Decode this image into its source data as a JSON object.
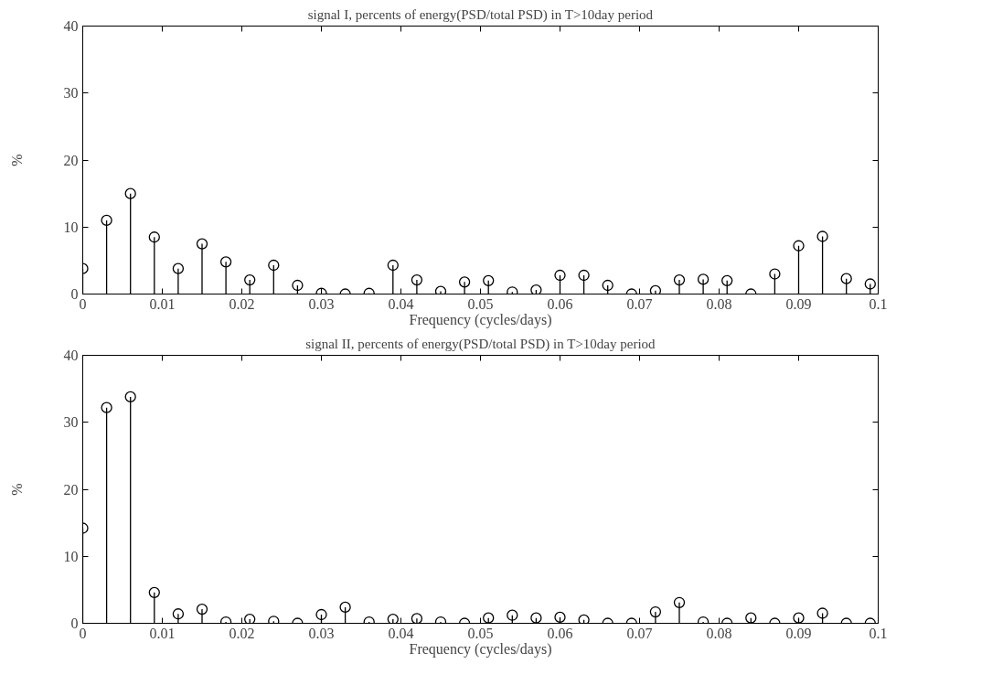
{
  "chart_data": [
    {
      "type": "lollipop",
      "title": "signal I, percents of energy(PSD/total PSD) in T>10day period",
      "xlabel": "Frequency (cycles/days)",
      "ylabel": "%",
      "marker": "circle",
      "grid": false,
      "x": [
        0,
        0.003,
        0.006,
        0.009,
        0.012,
        0.015,
        0.018,
        0.021,
        0.024,
        0.027,
        0.03,
        0.033,
        0.036,
        0.039,
        0.042,
        0.045,
        0.048,
        0.051,
        0.054,
        0.057,
        0.06,
        0.063,
        0.066,
        0.069,
        0.072,
        0.075,
        0.078,
        0.081,
        0.084,
        0.087,
        0.09,
        0.093,
        0.096,
        0.099
      ],
      "series": [
        {
          "color": "#000000",
          "values": [
            3.8,
            11,
            15,
            8.5,
            3.8,
            7.5,
            4.8,
            2.1,
            4.3,
            1.3,
            0.1,
            0,
            0.1,
            4.3,
            2.1,
            0.4,
            1.8,
            2,
            0.3,
            0.6,
            2.8,
            2.8,
            1.3,
            0,
            0.5,
            2.1,
            2.2,
            2,
            0,
            3,
            7.2,
            8.6,
            2.3,
            1.5
          ]
        }
      ],
      "xlim": [
        0,
        0.1
      ],
      "xticks": [
        0,
        0.01,
        0.02,
        0.03,
        0.04,
        0.05,
        0.06,
        0.07,
        0.08,
        0.09,
        0.1
      ],
      "ylim": [
        0,
        40
      ],
      "yticks": [
        0,
        10,
        20,
        30,
        40
      ]
    },
    {
      "type": "lollipop",
      "title": "signal II, percents of energy(PSD/total PSD) in T>10day period",
      "xlabel": "Frequency (cycles/days)",
      "ylabel": "%",
      "marker": "circle",
      "grid": false,
      "x": [
        0,
        0.003,
        0.006,
        0.009,
        0.012,
        0.015,
        0.018,
        0.021,
        0.024,
        0.027,
        0.03,
        0.033,
        0.036,
        0.039,
        0.042,
        0.045,
        0.048,
        0.051,
        0.054,
        0.057,
        0.06,
        0.063,
        0.066,
        0.069,
        0.072,
        0.075,
        0.078,
        0.081,
        0.084,
        0.087,
        0.09,
        0.093,
        0.096,
        0.099
      ],
      "series": [
        {
          "color": "#000000",
          "values": [
            14.2,
            32.2,
            33.8,
            4.6,
            1.4,
            2.1,
            0.2,
            0.6,
            0.3,
            0,
            1.3,
            2.4,
            0.2,
            0.6,
            0.7,
            0.2,
            0,
            0.8,
            1.2,
            0.8,
            0.9,
            0.5,
            0,
            0,
            1.7,
            3.1,
            0.2,
            0,
            0.8,
            0,
            0.8,
            1.5,
            0,
            0
          ]
        }
      ],
      "xlim": [
        0,
        0.1
      ],
      "xticks": [
        0,
        0.01,
        0.02,
        0.03,
        0.04,
        0.05,
        0.06,
        0.07,
        0.08,
        0.09,
        0.1
      ],
      "ylim": [
        0,
        40
      ],
      "yticks": [
        0,
        10,
        20,
        30,
        40
      ]
    }
  ]
}
